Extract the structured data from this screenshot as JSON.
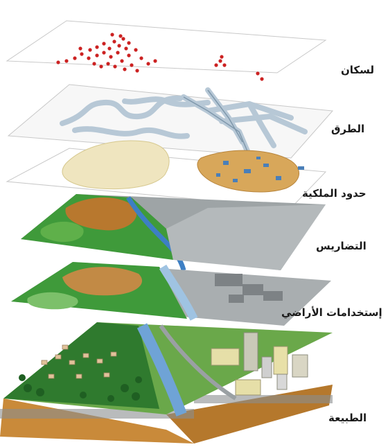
{
  "layers": [
    {
      "id": "population",
      "label": "لسكان"
    },
    {
      "id": "roads",
      "label": "الطرق"
    },
    {
      "id": "ownership",
      "label": "حدود الملكية"
    },
    {
      "id": "terrain",
      "label": "التضاريس"
    },
    {
      "id": "landuse",
      "label": "إستخدامات الأراضي"
    },
    {
      "id": "nature",
      "label": "الطبيعة"
    }
  ],
  "colors": {
    "population_points": "#cc2222",
    "roads": "#b7c8d6",
    "terrain_green": "#3f9a3a",
    "terrain_brown": "#b8782e",
    "terrain_gray": "#9ea4a6",
    "water": "#3d7fc4",
    "soil": "#c98a3a"
  }
}
